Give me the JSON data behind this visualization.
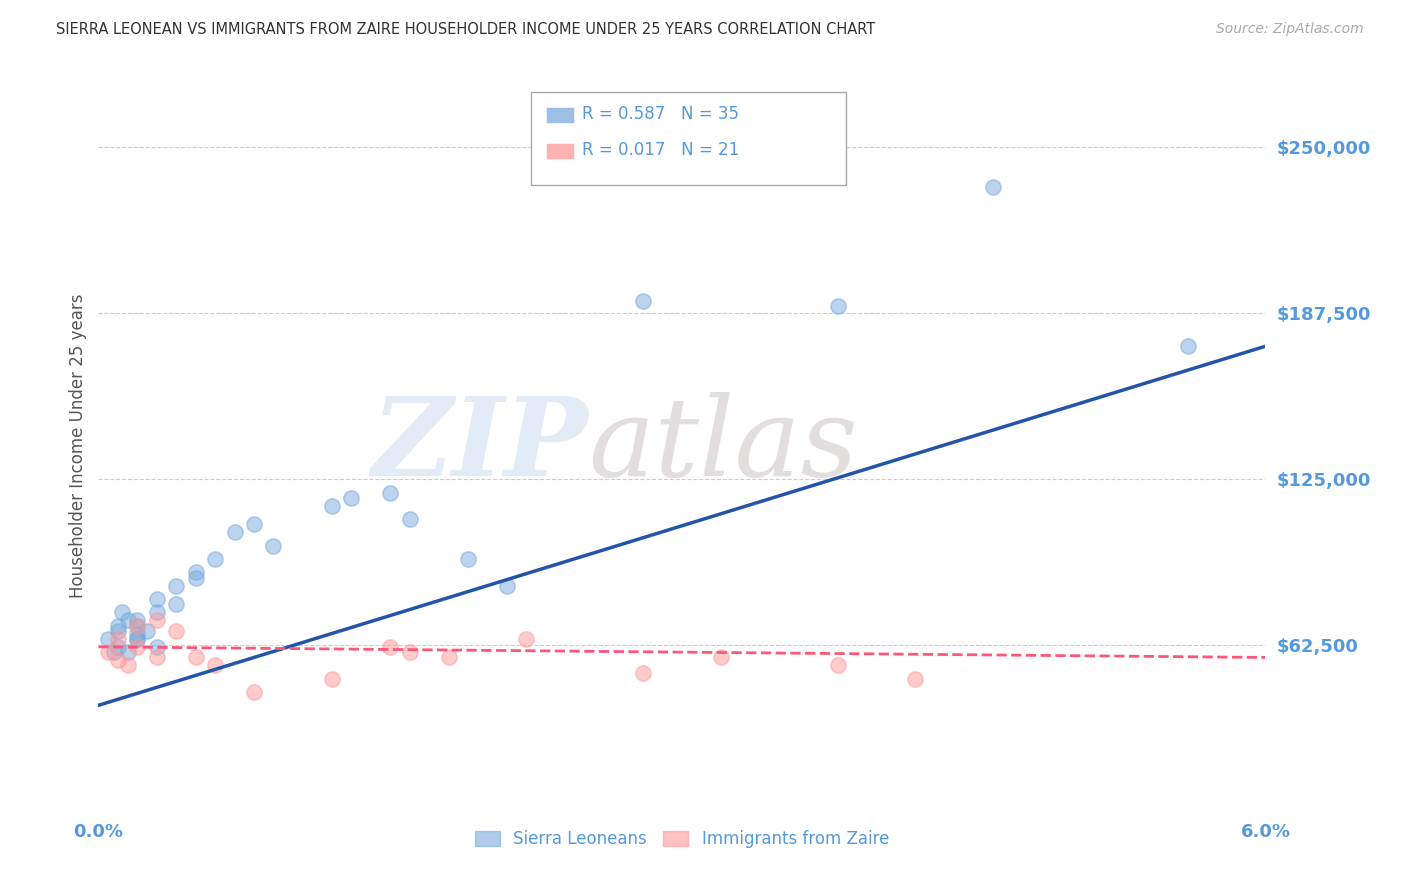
{
  "title": "SIERRA LEONEAN VS IMMIGRANTS FROM ZAIRE HOUSEHOLDER INCOME UNDER 25 YEARS CORRELATION CHART",
  "source": "Source: ZipAtlas.com",
  "ylabel": "Householder Income Under 25 years",
  "xlim": [
    0.0,
    0.06
  ],
  "ylim": [
    0,
    275000
  ],
  "yticks": [
    0,
    62500,
    125000,
    187500,
    250000
  ],
  "ytick_labels": [
    "",
    "$62,500",
    "$125,000",
    "$187,500",
    "$250,000"
  ],
  "xticks": [
    0.0,
    0.01,
    0.02,
    0.03,
    0.04,
    0.05,
    0.06
  ],
  "xtick_labels": [
    "0.0%",
    "",
    "",
    "",
    "",
    "",
    "6.0%"
  ],
  "background_color": "#ffffff",
  "grid_color": "#cccccc",
  "sierra_color": "#7aaadd",
  "zaire_color": "#ff9999",
  "sierra_line_color": "#2255aa",
  "zaire_line_color": "#ff5577",
  "sierra_R": 0.587,
  "sierra_N": 35,
  "zaire_R": 0.017,
  "zaire_N": 21,
  "sierra_points_x": [
    0.0005,
    0.0008,
    0.001,
    0.001,
    0.001,
    0.0012,
    0.0015,
    0.0015,
    0.002,
    0.002,
    0.002,
    0.002,
    0.002,
    0.0025,
    0.003,
    0.003,
    0.003,
    0.004,
    0.004,
    0.005,
    0.005,
    0.006,
    0.007,
    0.008,
    0.009,
    0.012,
    0.013,
    0.015,
    0.016,
    0.019,
    0.021,
    0.028,
    0.038,
    0.046,
    0.056
  ],
  "sierra_points_y": [
    65000,
    60000,
    70000,
    68000,
    62000,
    75000,
    72000,
    60000,
    65000,
    67000,
    70000,
    65000,
    72000,
    68000,
    75000,
    62000,
    80000,
    78000,
    85000,
    90000,
    88000,
    95000,
    105000,
    108000,
    100000,
    115000,
    118000,
    120000,
    110000,
    95000,
    85000,
    192000,
    190000,
    235000,
    175000
  ],
  "zaire_points_x": [
    0.0005,
    0.001,
    0.001,
    0.0015,
    0.002,
    0.002,
    0.003,
    0.003,
    0.004,
    0.005,
    0.006,
    0.008,
    0.012,
    0.015,
    0.016,
    0.018,
    0.022,
    0.028,
    0.032,
    0.038,
    0.042
  ],
  "zaire_points_y": [
    60000,
    65000,
    57000,
    55000,
    62000,
    70000,
    58000,
    72000,
    68000,
    58000,
    55000,
    45000,
    50000,
    62000,
    60000,
    58000,
    65000,
    52000,
    58000,
    55000,
    50000
  ],
  "sierra_line_x": [
    0.0,
    0.06
  ],
  "sierra_line_y": [
    40000,
    175000
  ],
  "zaire_line_x": [
    0.0,
    0.06
  ],
  "zaire_line_y": [
    62000,
    58000
  ],
  "legend_label_sierra": "Sierra Leoneans",
  "legend_label_zaire": "Immigrants from Zaire",
  "axis_color": "#5599dd",
  "title_color": "#333333",
  "ylabel_color": "#555555"
}
